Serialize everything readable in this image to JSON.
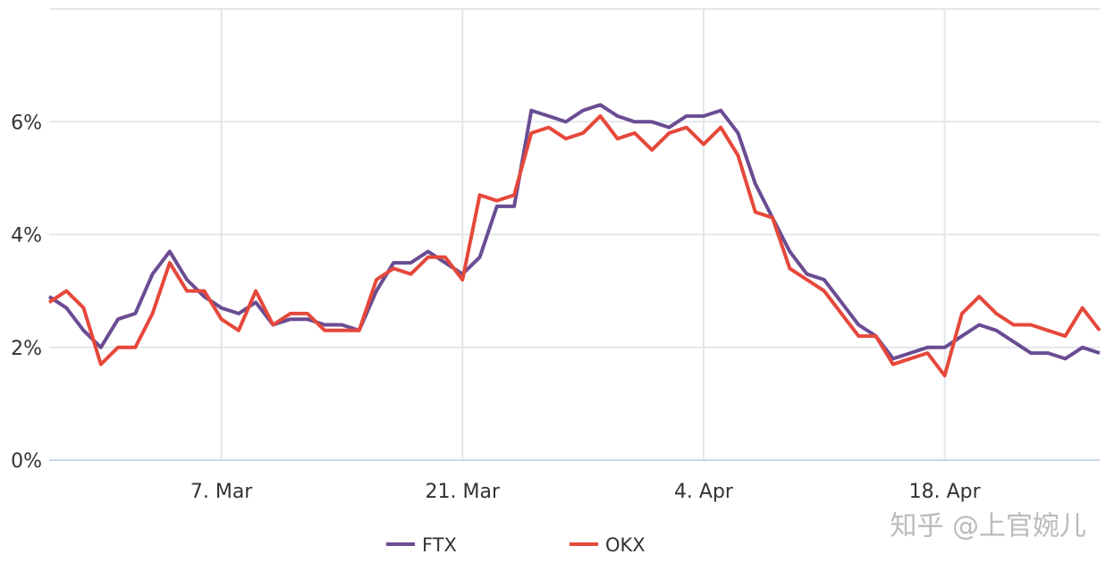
{
  "chart_data": {
    "type": "line",
    "x": [
      "25. Feb",
      "26. Feb",
      "27. Feb",
      "28. Feb",
      "1. Mar",
      "2. Mar",
      "3. Mar",
      "4. Mar",
      "5. Mar",
      "6. Mar",
      "7. Mar",
      "8. Mar",
      "9. Mar",
      "10. Mar",
      "11. Mar",
      "12. Mar",
      "13. Mar",
      "14. Mar",
      "15. Mar",
      "16. Mar",
      "17. Mar",
      "18. Mar",
      "19. Mar",
      "20. Mar",
      "21. Mar",
      "22. Mar",
      "23. Mar",
      "24. Mar",
      "25. Mar",
      "26. Mar",
      "27. Mar",
      "28. Mar",
      "29. Mar",
      "30. Mar",
      "31. Mar",
      "1. Apr",
      "2. Apr",
      "3. Apr",
      "4. Apr",
      "5. Apr",
      "6. Apr",
      "7. Apr",
      "8. Apr",
      "9. Apr",
      "10. Apr",
      "11. Apr",
      "12. Apr",
      "13. Apr",
      "14. Apr",
      "15. Apr",
      "16. Apr",
      "17. Apr",
      "18. Apr",
      "19. Apr",
      "20. Apr",
      "21. Apr",
      "22. Apr",
      "23. Apr",
      "24. Apr",
      "25. Apr",
      "26. Apr",
      "27. Apr"
    ],
    "series": [
      {
        "name": "FTX",
        "color": "#6a4c93",
        "values": [
          2.9,
          2.7,
          2.3,
          2.0,
          2.5,
          2.6,
          3.3,
          3.7,
          3.2,
          2.9,
          2.7,
          2.6,
          2.8,
          2.4,
          2.5,
          2.5,
          2.4,
          2.4,
          2.3,
          3.0,
          3.5,
          3.5,
          3.7,
          3.5,
          3.3,
          3.6,
          4.5,
          4.5,
          6.2,
          6.1,
          6.0,
          6.2,
          6.3,
          6.1,
          6.0,
          6.0,
          5.9,
          6.1,
          6.1,
          6.2,
          5.8,
          4.9,
          4.3,
          3.7,
          3.3,
          3.2,
          2.8,
          2.4,
          2.2,
          1.8,
          1.9,
          2.0,
          2.0,
          2.2,
          2.4,
          2.3,
          2.1,
          1.9,
          1.9,
          1.8,
          2.0,
          1.9
        ]
      },
      {
        "name": "OKX",
        "color": "#e5483b",
        "values": [
          2.8,
          3.0,
          2.7,
          1.7,
          2.0,
          2.0,
          2.6,
          3.5,
          3.0,
          3.0,
          2.5,
          2.3,
          3.0,
          2.4,
          2.6,
          2.6,
          2.3,
          2.3,
          2.3,
          3.2,
          3.4,
          3.3,
          3.6,
          3.6,
          3.2,
          4.7,
          4.6,
          4.7,
          5.8,
          5.9,
          5.7,
          5.8,
          6.1,
          5.7,
          5.8,
          5.5,
          5.8,
          5.9,
          5.6,
          5.9,
          5.4,
          4.4,
          4.3,
          3.4,
          3.2,
          3.0,
          2.6,
          2.2,
          2.2,
          1.7,
          1.8,
          1.9,
          1.5,
          2.6,
          2.9,
          2.6,
          2.4,
          2.4,
          2.3,
          2.2,
          2.7,
          2.3
        ]
      }
    ],
    "xlim": [
      "25. Feb",
      "27. Apr"
    ],
    "xticks": [
      "7. Mar",
      "21. Mar",
      "4. Apr",
      "18. Apr"
    ],
    "ylim": [
      0,
      8
    ],
    "yticks": [
      {
        "value": 0,
        "label": "0%"
      },
      {
        "value": 2,
        "label": "2%"
      },
      {
        "value": 4,
        "label": "4%"
      },
      {
        "value": 6,
        "label": "6%"
      }
    ],
    "grid": true,
    "legend": "bottom"
  },
  "watermark": "知乎 @上官婉儿"
}
